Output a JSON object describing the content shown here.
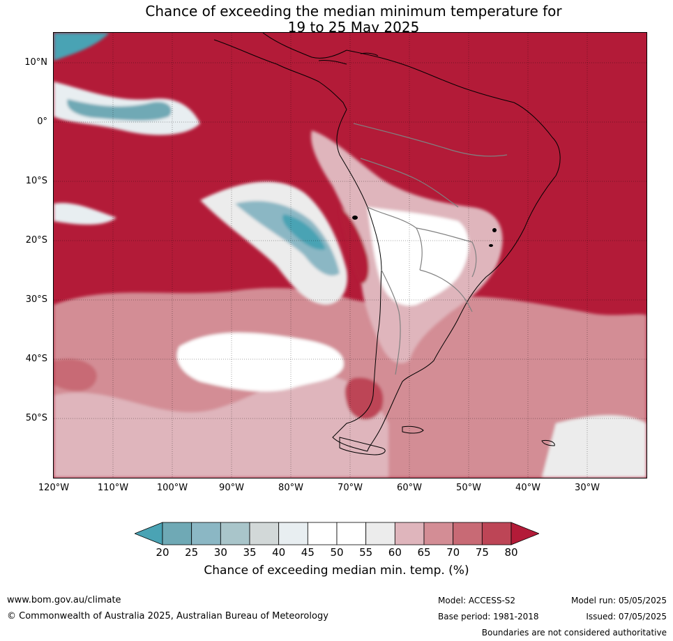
{
  "header": {
    "title_line_1": "Chance of exceeding the median minimum temperature for",
    "title_line_2": "19 to 25 May 2025"
  },
  "map": {
    "latitude_labels": [
      "10°N",
      "0°",
      "10°S",
      "20°S",
      "30°S",
      "40°S",
      "50°S"
    ],
    "longitude_labels": [
      "120°W",
      "110°W",
      "100°W",
      "90°W",
      "80°W",
      "70°W",
      "60°W",
      "50°W",
      "40°W",
      "30°W"
    ],
    "extent": {
      "lon_min": -120,
      "lon_max": -20,
      "lat_min": -60,
      "lat_max": 15
    },
    "background_color": "#b31b38",
    "coastline_color": "#000000",
    "border_color": "#808080"
  },
  "legend": {
    "tick_labels": [
      "20",
      "25",
      "30",
      "35",
      "40",
      "45",
      "50",
      "55",
      "60",
      "65",
      "70",
      "75",
      "80"
    ],
    "label": "Chance of exceeding median min. temp. (%)",
    "colors": [
      "#4aa3b4",
      "#6fa9b5",
      "#8bb7c4",
      "#a9c5ca",
      "#d2d8d8",
      "#e8eef1",
      "#ffffff",
      "#ffffff",
      "#ececec",
      "#dfb5bc",
      "#d38d95",
      "#c86a75",
      "#bd4556",
      "#b31b38"
    ]
  },
  "footer": {
    "website": "www.bom.gov.au/climate",
    "copyright": "© Commonwealth of Australia 2025, Australian Bureau of Meteorology",
    "model": "Model: ACCESS-S2",
    "base_period": "Base period: 1981-2018",
    "model_run": "Model run: 05/05/2025",
    "issued": "Issued: 07/05/2025",
    "disclaimer": "Boundaries are not considered authoritative"
  }
}
